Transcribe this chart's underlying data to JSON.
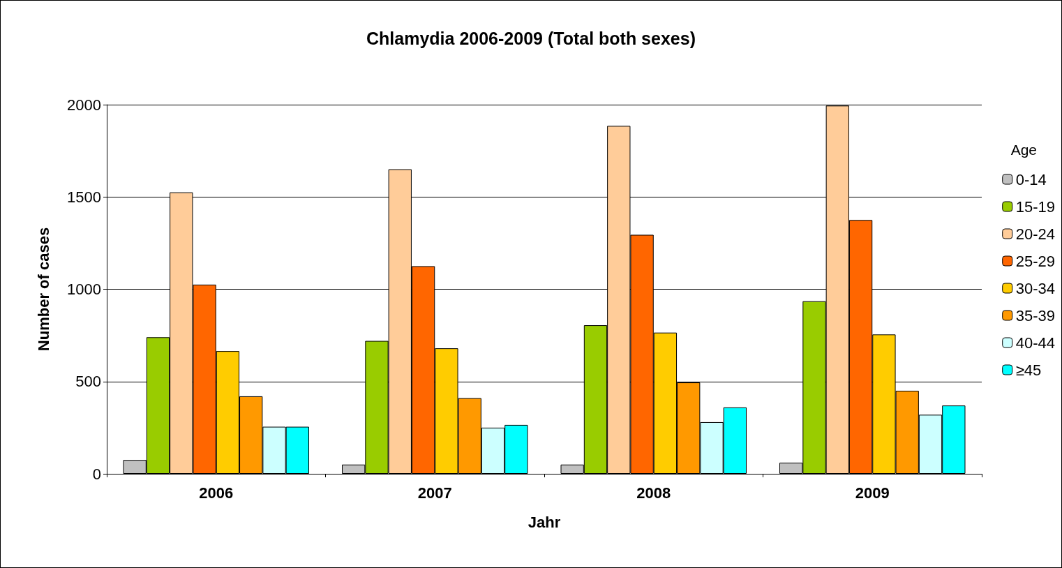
{
  "chart_data": {
    "type": "bar",
    "title": "Chlamydia 2006-2009 (Total both sexes)",
    "xlabel": "Jahr",
    "ylabel": "Number of cases",
    "legend_title": "Age",
    "categories": [
      "2006",
      "2007",
      "2008",
      "2009"
    ],
    "series": [
      {
        "name": "0-14",
        "color": "#c0c0c0",
        "values": [
          75,
          50,
          50,
          60
        ]
      },
      {
        "name": "15-19",
        "color": "#99cc00",
        "values": [
          740,
          720,
          805,
          935
        ]
      },
      {
        "name": "20-24",
        "color": "#ffcc99",
        "values": [
          1525,
          1650,
          1885,
          1995
        ]
      },
      {
        "name": "25-29",
        "color": "#ff6600",
        "values": [
          1025,
          1125,
          1295,
          1375
        ]
      },
      {
        "name": "30-34",
        "color": "#ffcc00",
        "values": [
          665,
          680,
          765,
          755
        ]
      },
      {
        "name": "35-39",
        "color": "#ff9900",
        "values": [
          420,
          410,
          495,
          450
        ]
      },
      {
        "name": "40-44",
        "color": "#ccffff",
        "values": [
          255,
          250,
          280,
          320
        ]
      },
      {
        "name": "≥45",
        "color": "#00ffff",
        "values": [
          255,
          265,
          360,
          370
        ]
      }
    ],
    "ylim": [
      0,
      2000
    ],
    "yticks": [
      0,
      500,
      1000,
      1500,
      2000
    ],
    "grid": "y",
    "legend": "right"
  }
}
